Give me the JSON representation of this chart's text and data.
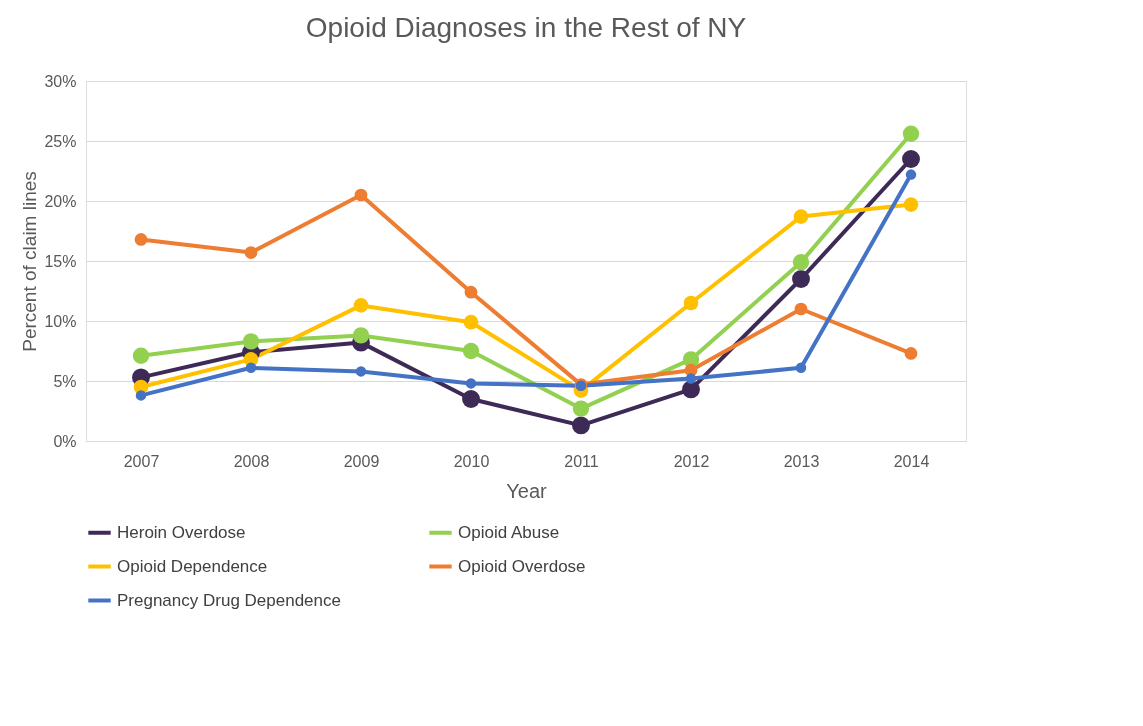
{
  "chart_data": {
    "type": "line",
    "title": "Opioid Diagnoses in the Rest of NY",
    "xlabel": "Year",
    "ylabel": "Percent of claim lines",
    "categories": [
      "2007",
      "2008",
      "2009",
      "2010",
      "2011",
      "2012",
      "2013",
      "2014"
    ],
    "series": [
      {
        "name": "Heroin Overdose",
        "color": "#3e2a56",
        "values": [
          5.3,
          7.4,
          8.2,
          3.5,
          1.3,
          4.3,
          13.5,
          23.5
        ]
      },
      {
        "name": "Opioid Abuse",
        "color": "#92d050",
        "values": [
          7.1,
          8.3,
          8.8,
          7.5,
          2.7,
          6.8,
          14.9,
          25.6
        ]
      },
      {
        "name": "Opioid Dependence",
        "color": "#ffc000",
        "values": [
          4.5,
          6.8,
          11.3,
          9.9,
          4.2,
          11.5,
          18.7,
          19.7
        ]
      },
      {
        "name": "Opioid Overdose",
        "color": "#ed7d31",
        "values": [
          16.8,
          15.7,
          20.5,
          12.4,
          4.7,
          5.9,
          11.0,
          7.3
        ]
      },
      {
        "name": "Pregnancy Drug Dependence",
        "color": "#4472c4",
        "values": [
          3.8,
          6.1,
          5.8,
          4.8,
          4.6,
          5.2,
          6.1,
          22.2
        ]
      }
    ],
    "ylim": [
      0,
      30
    ],
    "yticks": [
      {
        "value": 0,
        "label": "0%"
      },
      {
        "value": 5,
        "label": "5%"
      },
      {
        "value": 10,
        "label": "10%"
      },
      {
        "value": 15,
        "label": "15%"
      },
      {
        "value": 20,
        "label": "20%"
      },
      {
        "value": 25,
        "label": "25%"
      },
      {
        "value": 30,
        "label": "30%"
      }
    ],
    "grid": "y",
    "legend": "bottom",
    "marker": "circle",
    "line_style": "solid"
  }
}
